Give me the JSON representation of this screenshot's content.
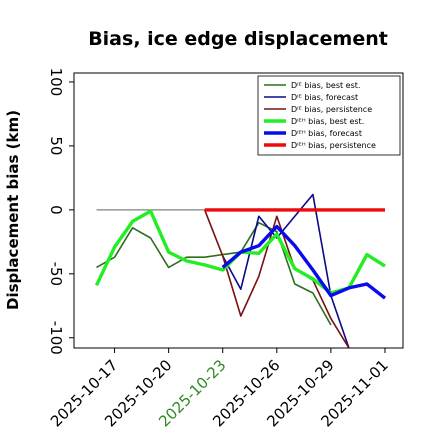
{
  "chart_data": {
    "type": "line",
    "title": "Bias, ice edge displacement",
    "ylabel": "Displacement bias (km)",
    "xlabel": "",
    "ylim": [
      -108,
      107
    ],
    "xlim": [
      "2025-10-14T18:00",
      "2025-11-02T00:00"
    ],
    "yticks": [
      100,
      50,
      0,
      -50,
      -100
    ],
    "xticks": [
      {
        "date": "2025-10-17",
        "label": "2025-10-17",
        "color": "#000000"
      },
      {
        "date": "2025-10-20",
        "label": "2025-10-20",
        "color": "#000000"
      },
      {
        "date": "2025-10-23",
        "label": "2025-10-23",
        "color": "#2e8b22"
      },
      {
        "date": "2025-10-26",
        "label": "2025-10-26",
        "color": "#000000"
      },
      {
        "date": "2025-10-29",
        "label": "2025-10-29",
        "color": "#000000"
      },
      {
        "date": "2025-11-01",
        "label": "2025-11-01",
        "color": "#000000"
      }
    ],
    "grid": false,
    "legend_position": "top-right",
    "reference_line": {
      "y": 0,
      "from": "2025-10-16",
      "to": "2025-10-22",
      "color": "#808080"
    },
    "series": [
      {
        "name": "Dᴵᴱ bias, best est.",
        "color": "#2d6e1e",
        "width": 1.6,
        "x": [
          "2025-10-16",
          "2025-10-17",
          "2025-10-18",
          "2025-10-19",
          "2025-10-20",
          "2025-10-21",
          "2025-10-22",
          "2025-10-23",
          "2025-10-24",
          "2025-10-25",
          "2025-10-26",
          "2025-10-27",
          "2025-10-28",
          "2025-10-29"
        ],
        "y": [
          -45,
          -37,
          -14,
          -22,
          -45,
          -37,
          -37,
          -35,
          -33,
          -10,
          -17,
          -58,
          -65,
          -90
        ]
      },
      {
        "name": "Dᴵᴱ bias, forecast",
        "color": "#0a0a8c",
        "width": 1.6,
        "x": [
          "2025-10-23",
          "2025-10-24",
          "2025-10-25",
          "2025-10-26",
          "2025-10-27",
          "2025-10-28",
          "2025-10-29",
          "2025-10-30"
        ],
        "y": [
          -36,
          -62,
          -5,
          -22,
          -5,
          12,
          -67,
          -108
        ]
      },
      {
        "name": "Dᴵᴱ bias, persistence",
        "color": "#7a1010",
        "width": 1.6,
        "x": [
          "2025-10-22",
          "2025-10-23",
          "2025-10-24",
          "2025-10-25",
          "2025-10-26",
          "2025-10-27",
          "2025-10-28",
          "2025-10-29",
          "2025-10-30"
        ],
        "y": [
          0,
          -36,
          -83,
          -52,
          -5,
          -46,
          -55,
          -85,
          -108
        ]
      },
      {
        "name": "Dᴵᴱᴴ bias, best est.",
        "color": "#22ee22",
        "width": 3.4,
        "x": [
          "2025-10-16",
          "2025-10-17",
          "2025-10-18",
          "2025-10-19",
          "2025-10-20",
          "2025-10-21",
          "2025-10-22",
          "2025-10-23",
          "2025-10-24",
          "2025-10-25",
          "2025-10-26",
          "2025-10-27",
          "2025-10-28",
          "2025-10-29",
          "2025-10-30",
          "2025-10-31",
          "2025-11-01"
        ],
        "y": [
          -59,
          -29,
          -9,
          -1,
          -33,
          -40,
          -43,
          -47,
          -33,
          -34,
          -19,
          -46,
          -54,
          -65,
          -61,
          -35,
          -44
        ]
      },
      {
        "name": "Dᴵᴱᴴ bias, forecast",
        "color": "#0a0aee",
        "width": 3.4,
        "x": [
          "2025-10-23",
          "2025-10-24",
          "2025-10-25",
          "2025-10-26",
          "2025-10-27",
          "2025-10-28",
          "2025-10-29",
          "2025-10-30",
          "2025-10-31",
          "2025-11-01"
        ],
        "y": [
          -45,
          -33,
          -28,
          -13,
          -28,
          -47,
          -67,
          -61,
          -58,
          -69
        ]
      },
      {
        "name": "Dᴵᴱᴴ bias, persistence",
        "color": "#ee0a0a",
        "width": 3.4,
        "x": [
          "2025-10-22",
          "2025-11-01"
        ],
        "y": [
          0,
          0
        ]
      }
    ]
  }
}
